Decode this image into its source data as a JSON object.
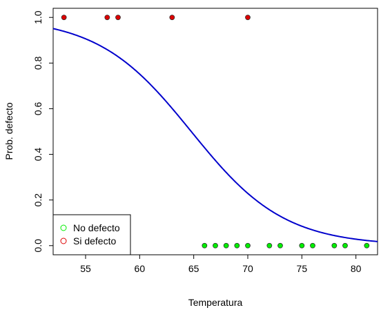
{
  "chart_data": {
    "type": "scatter",
    "title": "",
    "xlabel": "Temperatura",
    "ylabel": "Prob. defecto",
    "xlim": [
      52.0,
      82.0
    ],
    "ylim": [
      -0.04,
      1.04
    ],
    "xticks": [
      55,
      60,
      65,
      70,
      75,
      80
    ],
    "yticks": [
      0.0,
      0.2,
      0.4,
      0.6,
      0.8,
      1.0
    ],
    "xtick_labels": [
      "55",
      "60",
      "65",
      "70",
      "75",
      "80"
    ],
    "ytick_labels": [
      "0.0",
      "0.2",
      "0.4",
      "0.6",
      "0.8",
      "1.0"
    ],
    "grid": false,
    "legend_position": "bottom-left",
    "series": [
      {
        "name": "No defecto",
        "color": "#00ee00",
        "marker_border": "#333333",
        "x": [
          66,
          67,
          68,
          69,
          70,
          72,
          73,
          75,
          76,
          78,
          79,
          81
        ],
        "y": [
          0,
          0,
          0,
          0,
          0,
          0,
          0,
          0,
          0,
          0,
          0,
          0
        ]
      },
      {
        "name": "Si defecto",
        "color": "#dd0000",
        "marker_border": "#333333",
        "x": [
          53,
          57,
          58,
          63,
          70
        ],
        "y": [
          1,
          1,
          1,
          1,
          1
        ]
      }
    ],
    "fit_curve": {
      "type": "logistic",
      "color": "#0000cc",
      "intercept": 15.04,
      "slope": -0.2322
    },
    "legend": {
      "entries": [
        "No defecto",
        "Si defecto"
      ],
      "colors": [
        "#00ee00",
        "#dd0000"
      ]
    }
  }
}
